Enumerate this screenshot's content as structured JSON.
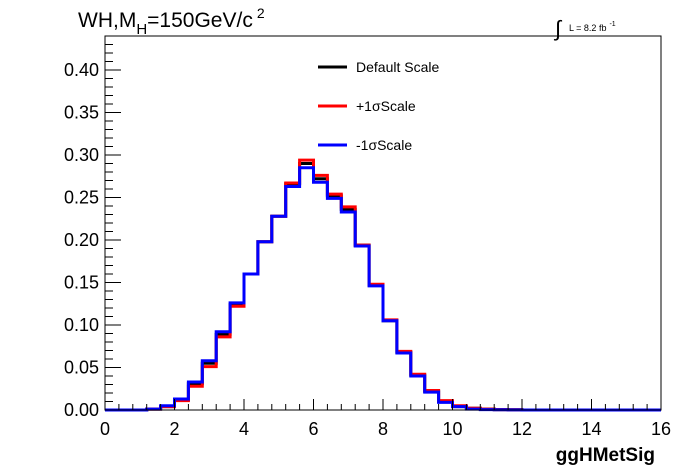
{
  "chart_data": {
    "type": "line",
    "title_main": "WH,M",
    "title_sub": "H",
    "title_rest": "=150GeV/c",
    "title_sup": "2",
    "lumi_label": "L = 8.2 fb",
    "lumi_sup": "-1",
    "xlabel": "ggHMetSig",
    "ylabel": "",
    "xlim": [
      0,
      16
    ],
    "ylim": [
      0,
      0.44
    ],
    "x_ticks": [
      "0",
      "2",
      "4",
      "6",
      "8",
      "10",
      "12",
      "14",
      "16"
    ],
    "y_ticks": [
      "0.00",
      "0.05",
      "0.10",
      "0.15",
      "0.20",
      "0.25",
      "0.30",
      "0.35",
      "0.40"
    ],
    "bin_width": 0.4,
    "bin_edges_start": 0,
    "legend_position": "top-center",
    "series": [
      {
        "name": "Default Scale",
        "color": "#000000",
        "values": [
          0,
          0,
          0,
          0.001,
          0.004,
          0.012,
          0.031,
          0.055,
          0.089,
          0.124,
          0.16,
          0.198,
          0.228,
          0.266,
          0.29,
          0.272,
          0.252,
          0.236,
          0.194,
          0.147,
          0.105,
          0.068,
          0.041,
          0.022,
          0.01,
          0.004,
          0.002,
          0.001,
          0.0005,
          0.0003,
          0,
          0,
          0,
          0,
          0,
          0,
          0,
          0,
          0,
          0
        ]
      },
      {
        "name": "+1σScale",
        "color": "#ff0000",
        "values": [
          0,
          0,
          0,
          0.001,
          0.004,
          0.011,
          0.028,
          0.051,
          0.086,
          0.122,
          0.16,
          0.198,
          0.228,
          0.267,
          0.294,
          0.276,
          0.254,
          0.239,
          0.194,
          0.148,
          0.106,
          0.069,
          0.042,
          0.023,
          0.011,
          0.005,
          0.002,
          0.001,
          0.0005,
          0.0003,
          0,
          0,
          0,
          0,
          0,
          0,
          0,
          0,
          0,
          0
        ]
      },
      {
        "name": "-1σScale",
        "color": "#0000ff",
        "values": [
          0,
          0,
          0,
          0.001,
          0.005,
          0.013,
          0.033,
          0.058,
          0.092,
          0.126,
          0.16,
          0.198,
          0.228,
          0.263,
          0.285,
          0.268,
          0.249,
          0.233,
          0.193,
          0.146,
          0.105,
          0.067,
          0.04,
          0.021,
          0.009,
          0.004,
          0.001,
          0.0005,
          0.0003,
          0.0001,
          0,
          0,
          0,
          0,
          0,
          0,
          0,
          0,
          0,
          0
        ]
      }
    ]
  }
}
